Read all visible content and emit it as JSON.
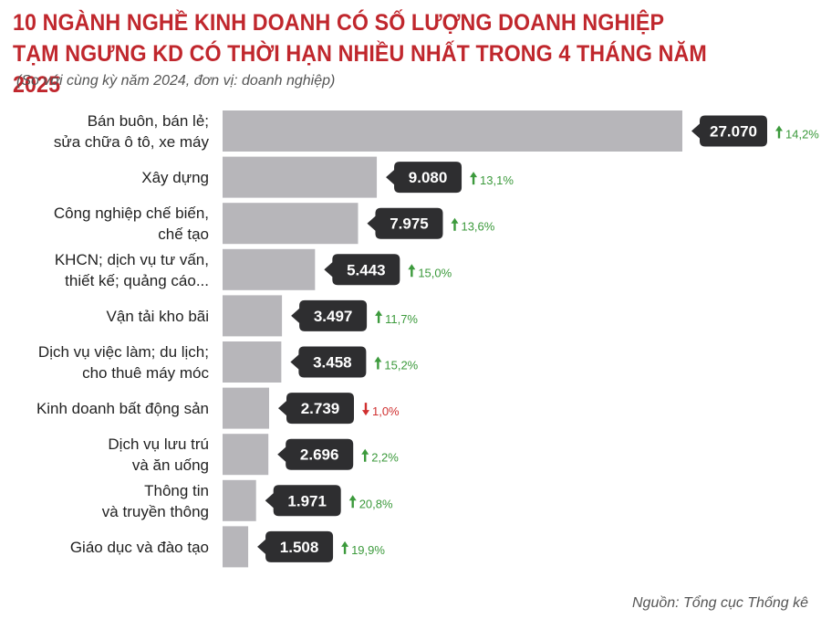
{
  "header": {
    "title_line1": "10 NGÀNH NGHỀ KINH DOANH CÓ SỐ LƯỢNG DOANH NGHIỆP",
    "title_line2": "TẠM NGƯNG KD CÓ THỜI HẠN NHIỀU NHẤT TRONG 4 THÁNG NĂM 2025",
    "subtitle": "(So với cùng kỳ năm 2024, đơn vị: doanh nghiệp)"
  },
  "footer": {
    "source": "Nguồn: Tổng cục Thống kê"
  },
  "colors": {
    "title": "#c0272d",
    "bar": "#b7b6ba",
    "value_bubble": "#2e2e30",
    "increase": "#3c9a3c",
    "decrease": "#d03030"
  },
  "chart_data": {
    "type": "bar",
    "orientation": "horizontal",
    "categories": [
      [
        "Bán buôn, bán lẻ;",
        "sửa chữa ô tô, xe máy"
      ],
      [
        "Xây dựng"
      ],
      [
        "Công nghiệp chế biến,",
        "chế tạo"
      ],
      [
        "KHCN; dịch vụ tư vấn,",
        "thiết kế; quảng cáo..."
      ],
      [
        "Vận tải kho bãi"
      ],
      [
        "Dịch vụ việc làm; du lịch;",
        "cho thuê máy móc"
      ],
      [
        "Kinh doanh bất động sản"
      ],
      [
        "Dịch vụ lưu trú",
        "và ăn uống"
      ],
      [
        "Thông tin",
        "và truyền thông"
      ],
      [
        "Giáo dục và đào tạo"
      ]
    ],
    "values": [
      27070,
      9080,
      7975,
      5443,
      3497,
      3458,
      2739,
      2696,
      1971,
      1508
    ],
    "value_labels": [
      "27.070",
      "9.080",
      "7.975",
      "5.443",
      "3.497",
      "3.458",
      "2.739",
      "2.696",
      "1.971",
      "1.508"
    ],
    "changes": [
      "14,2%",
      "13,1%",
      "13,6%",
      "15,0%",
      "11,7%",
      "15,2%",
      "1,0%",
      "2,2%",
      "20,8%",
      "19,9%"
    ],
    "change_direction": [
      "up",
      "up",
      "up",
      "up",
      "up",
      "up",
      "down",
      "up",
      "up",
      "up"
    ],
    "xlim": [
      0,
      27070
    ],
    "grid": false,
    "legend": "none"
  }
}
